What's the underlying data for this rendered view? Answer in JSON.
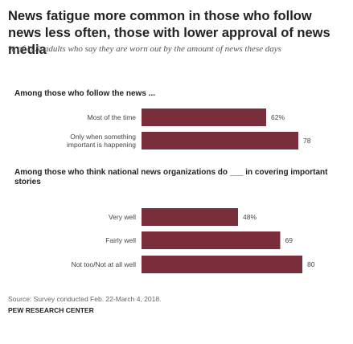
{
  "title": "News fatigue more common in those who follow news less often, those with lower approval of news media",
  "subtitle": "% of U.S. adults who say they are worn out by the amount of news these days",
  "colors": {
    "bar": "#7a2e3b"
  },
  "chart_data": [
    {
      "type": "bar",
      "orientation": "horizontal",
      "title": "Among those who follow the news ...",
      "categories": [
        "Most of the time",
        "Only when something important is happening"
      ],
      "category_lines": [
        [
          "Most of the time"
        ],
        [
          "Only when something",
          "important is happening"
        ]
      ],
      "values": [
        62,
        78
      ],
      "value_labels": [
        "62%",
        "78"
      ],
      "xlim": [
        0,
        100
      ]
    },
    {
      "type": "bar",
      "orientation": "horizontal",
      "title": "Among those who think national news organizations do ___ in covering important stories",
      "categories": [
        "Very well",
        "Fairly well",
        "Not too/Not at all well"
      ],
      "category_lines": [
        [
          "Very well"
        ],
        [
          "Fairly well"
        ],
        [
          "Not too/Not at all well"
        ]
      ],
      "values": [
        48,
        69,
        80
      ],
      "value_labels": [
        "48%",
        "69",
        "80"
      ],
      "xlim": [
        0,
        100
      ]
    }
  ],
  "source": "Source: Survey conducted Feb. 22-March 4, 2018.",
  "org": "PEW RESEARCH CENTER"
}
